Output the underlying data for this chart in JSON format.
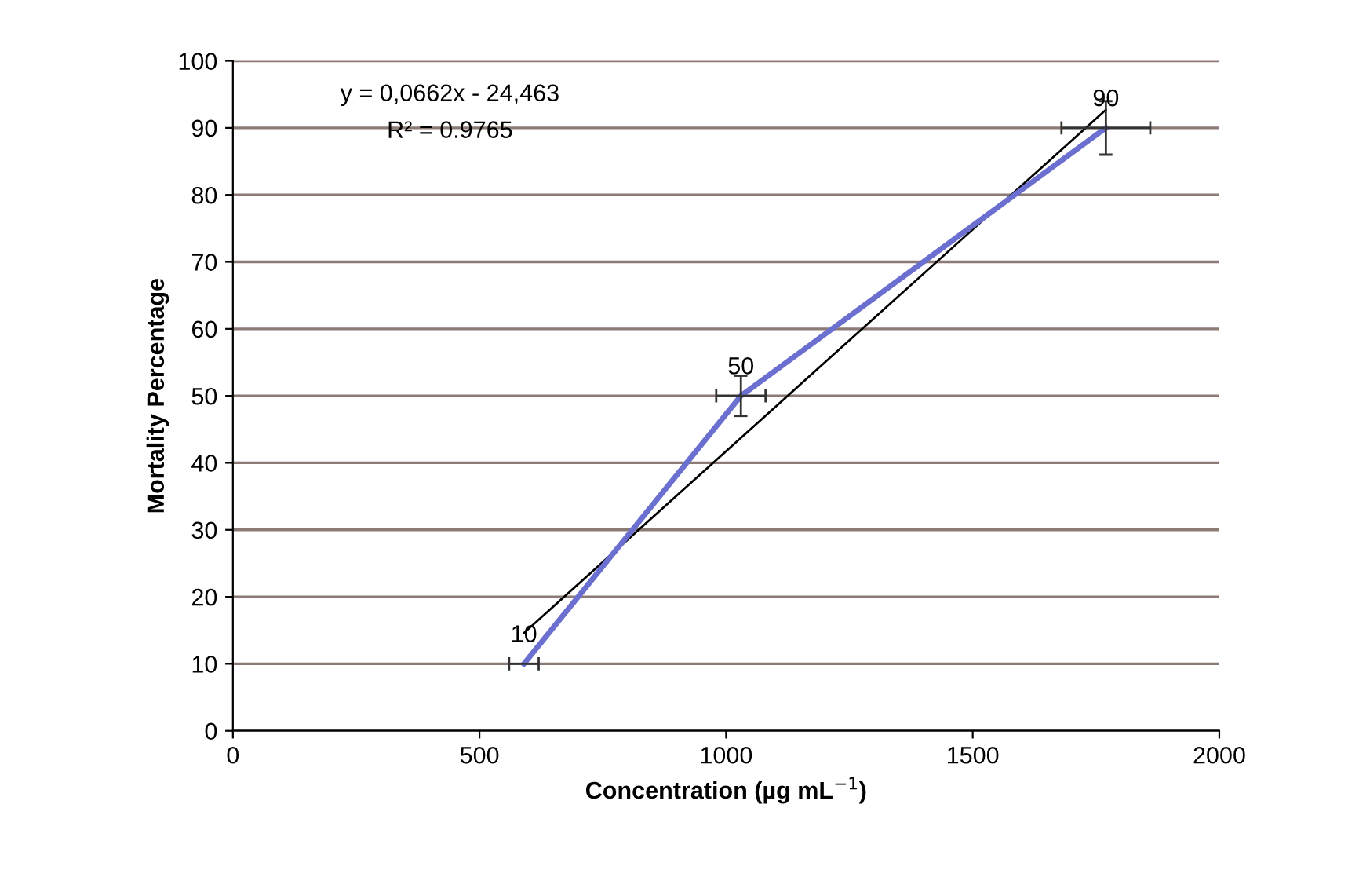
{
  "chart_data": {
    "type": "line",
    "xlabel": "Concentration (µg mL$^{−1}$)",
    "ylabel": "Mortality Percentage",
    "x": [
      590,
      1030,
      1770
    ],
    "series": [
      {
        "color": "#6a6fd0",
        "values": [
          10,
          50,
          90
        ],
        "errors": [
          null,
          3,
          4
        ],
        "xerrors": [
          30,
          50,
          90
        ],
        "value_labels": [
          "10",
          "50",
          "90"
        ]
      },
      {
        "type": "line",
        "color": "#000000",
        "x": [
          590,
          1770
        ],
        "values": [
          14.6,
          92.7
        ]
      }
    ],
    "annotations": [
      "y = 0,0662x - 24,463",
      "R² = 0.9765"
    ],
    "xlim": [
      0,
      2000
    ],
    "xticks": [
      0,
      500,
      1000,
      1500,
      2000
    ],
    "ylim": [
      0,
      100
    ],
    "yticks": [
      0,
      10,
      20,
      30,
      40,
      50,
      60,
      70,
      80,
      90,
      100
    ],
    "grid": "y",
    "marker": "none",
    "line_style": "solid"
  }
}
